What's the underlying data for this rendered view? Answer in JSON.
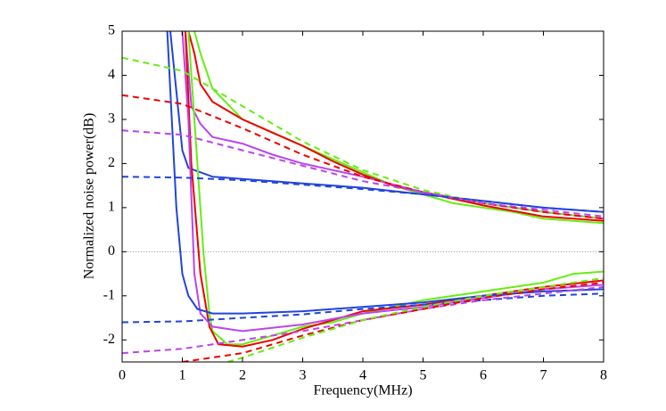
{
  "chart_data": {
    "type": "line",
    "x_label": "Frequency(MHz)",
    "y_label": "Normalized noise power(dB)",
    "xlim": [
      0,
      8
    ],
    "xticks": [
      0,
      1,
      2,
      3,
      4,
      5,
      6,
      7,
      8
    ],
    "ylim": [
      -2.5,
      5
    ],
    "yticks": [
      -2,
      -1,
      0,
      1,
      2,
      3,
      4,
      5
    ],
    "reference_line": 0,
    "series": [
      {
        "color": "#66ee11",
        "style": "solid",
        "x": [
          1.2,
          1.3,
          1.5,
          2,
          2.5,
          3,
          3.5,
          4,
          4.5,
          5,
          5.5,
          6,
          6.5,
          7,
          7.5,
          8
        ],
        "values": [
          5,
          4.5,
          3.7,
          3.0,
          2.7,
          2.4,
          2.1,
          1.8,
          1.5,
          1.3,
          1.1,
          1.0,
          0.9,
          0.75,
          0.7,
          0.65
        ]
      },
      {
        "color": "#ee0000",
        "style": "solid",
        "x": [
          1.1,
          1.2,
          1.3,
          1.5,
          2,
          2.5,
          3,
          3.5,
          4,
          4.5,
          5,
          6,
          7,
          8
        ],
        "values": [
          5,
          4.5,
          3.8,
          3.4,
          3.0,
          2.7,
          2.4,
          2.05,
          1.75,
          1.5,
          1.35,
          1.05,
          0.8,
          0.7
        ]
      },
      {
        "color": "#bb44ee",
        "style": "solid",
        "x": [
          1.05,
          1.15,
          1.3,
          1.5,
          2,
          2.5,
          3,
          3.5,
          4,
          5,
          6,
          7,
          8
        ],
        "values": [
          5,
          3.3,
          2.9,
          2.6,
          2.45,
          2.2,
          2.0,
          1.85,
          1.7,
          1.35,
          1.1,
          0.9,
          0.75
        ]
      },
      {
        "color": "#2244dd",
        "style": "solid",
        "x": [
          0.8,
          1.0,
          1.1,
          1.5,
          2,
          3,
          4,
          5,
          6,
          7,
          8
        ],
        "values": [
          5,
          2.3,
          1.9,
          1.7,
          1.65,
          1.55,
          1.45,
          1.3,
          1.15,
          1.0,
          0.9
        ]
      },
      {
        "color": "#66ee11",
        "style": "solid",
        "x": [
          1.1,
          1.25,
          1.35,
          1.45,
          1.5,
          1.75,
          2,
          2.5,
          3,
          3.5,
          4,
          4.5,
          5,
          6,
          7,
          7.5,
          8
        ],
        "values": [
          5,
          2,
          0,
          -1.4,
          -1.8,
          -2.1,
          -2.1,
          -1.9,
          -1.7,
          -1.6,
          -1.4,
          -1.25,
          -1.1,
          -0.9,
          -0.7,
          -0.5,
          -0.45
        ]
      },
      {
        "color": "#ee0000",
        "style": "solid",
        "x": [
          1.05,
          1.15,
          1.3,
          1.45,
          1.6,
          2,
          2.5,
          3,
          3.5,
          4,
          5,
          6,
          7,
          8
        ],
        "values": [
          5,
          2,
          -0.5,
          -1.7,
          -2.1,
          -2.15,
          -2.0,
          -1.75,
          -1.55,
          -1.35,
          -1.2,
          -1.0,
          -0.8,
          -0.65
        ]
      },
      {
        "color": "#bb44ee",
        "style": "solid",
        "x": [
          1.0,
          1.1,
          1.2,
          1.3,
          1.5,
          2,
          3,
          4,
          5,
          6,
          7,
          8
        ],
        "values": [
          5,
          3,
          -0.5,
          -1.4,
          -1.7,
          -1.8,
          -1.65,
          -1.4,
          -1.25,
          -1.05,
          -0.85,
          -0.75
        ]
      },
      {
        "color": "#2244dd",
        "style": "solid",
        "x": [
          0.75,
          0.9,
          1.0,
          1.1,
          1.25,
          1.5,
          2,
          3,
          4,
          5,
          6,
          7,
          8
        ],
        "values": [
          5,
          1,
          -0.5,
          -1.0,
          -1.3,
          -1.4,
          -1.4,
          -1.35,
          -1.25,
          -1.15,
          -1.0,
          -0.9,
          -0.85
        ]
      },
      {
        "color": "#66ee11",
        "style": "dashed",
        "x": [
          0,
          1,
          2,
          3,
          4,
          5,
          6,
          7,
          8
        ],
        "values": [
          4.4,
          4.1,
          3.3,
          2.5,
          1.85,
          1.4,
          1.1,
          0.9,
          0.75
        ]
      },
      {
        "color": "#ee0000",
        "style": "dashed",
        "x": [
          0,
          1,
          2,
          3,
          4,
          5,
          6,
          7,
          8
        ],
        "values": [
          3.55,
          3.35,
          2.8,
          2.2,
          1.7,
          1.35,
          1.1,
          0.9,
          0.75
        ]
      },
      {
        "color": "#bb44ee",
        "style": "dashed",
        "x": [
          0,
          1,
          2,
          3,
          4,
          5,
          6,
          7,
          8
        ],
        "values": [
          2.75,
          2.65,
          2.3,
          1.95,
          1.6,
          1.35,
          1.1,
          0.95,
          0.8
        ]
      },
      {
        "color": "#2244dd",
        "style": "dashed",
        "x": [
          0,
          1,
          2,
          3,
          4,
          5,
          6,
          7,
          8
        ],
        "values": [
          1.7,
          1.68,
          1.62,
          1.52,
          1.42,
          1.3,
          1.15,
          1.0,
          0.9
        ]
      },
      {
        "color": "#2244dd",
        "style": "dashed",
        "x": [
          0,
          1,
          2,
          3,
          4,
          5,
          6,
          7,
          8
        ],
        "values": [
          -1.6,
          -1.58,
          -1.5,
          -1.42,
          -1.3,
          -1.2,
          -1.1,
          -1.0,
          -0.95
        ]
      },
      {
        "color": "#bb44ee",
        "style": "dashed",
        "x": [
          0,
          1,
          2,
          3,
          4,
          5,
          6,
          7,
          8
        ],
        "values": [
          -2.3,
          -2.2,
          -2.0,
          -1.8,
          -1.55,
          -1.3,
          -1.1,
          -0.95,
          -0.8
        ]
      },
      {
        "color": "#ee0000",
        "style": "dashed",
        "x": [
          1,
          2,
          3,
          4,
          5,
          6,
          7,
          8
        ],
        "values": [
          -2.5,
          -2.3,
          -1.9,
          -1.55,
          -1.3,
          -1.05,
          -0.85,
          -0.7
        ]
      },
      {
        "color": "#66ee11",
        "style": "dashed",
        "x": [
          1.75,
          2,
          3,
          4,
          5,
          6,
          7,
          8
        ],
        "values": [
          -2.5,
          -2.4,
          -1.95,
          -1.55,
          -1.25,
          -1.0,
          -0.8,
          -0.6
        ]
      }
    ]
  }
}
